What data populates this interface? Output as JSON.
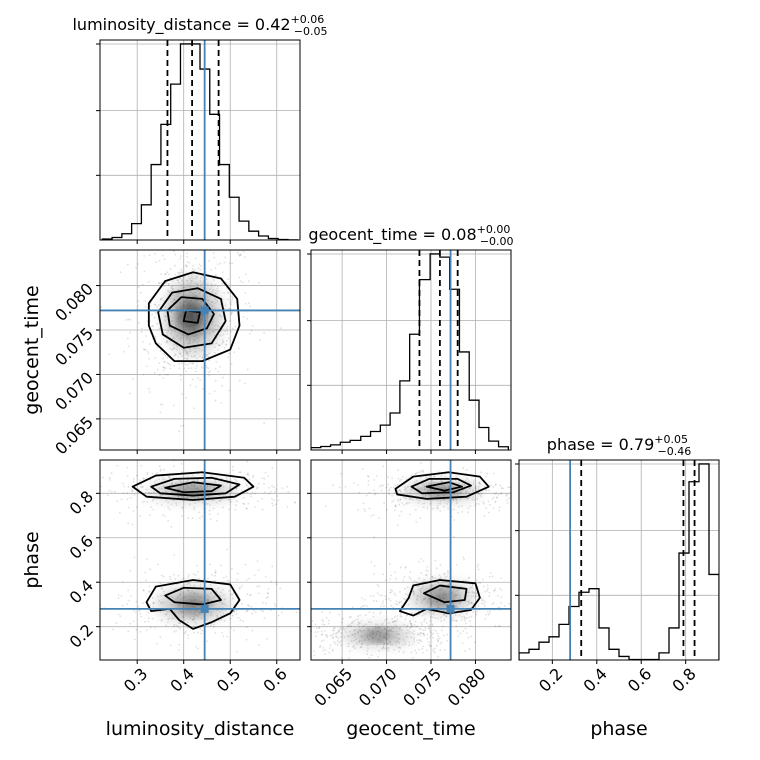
{
  "chart_data": {
    "type": "corner",
    "parameters": [
      "luminosity_distance",
      "geocent_time",
      "phase"
    ],
    "axis_labels": {
      "luminosity_distance": "luminosity_distance",
      "geocent_time": "geocent_time",
      "phase": "phase"
    },
    "ranges": {
      "luminosity_distance": [
        0.22,
        0.65
      ],
      "geocent_time": [
        0.0615,
        0.084
      ],
      "phase": [
        0.05,
        0.95
      ]
    },
    "ticks": {
      "luminosity_distance": {
        "values": [
          0.3,
          0.4,
          0.5,
          0.6
        ],
        "labels": [
          "0.3",
          "0.4",
          "0.5",
          "0.6"
        ]
      },
      "geocent_time": {
        "values": [
          0.065,
          0.07,
          0.075,
          0.08
        ],
        "labels": [
          "0.065",
          "0.070",
          "0.075",
          "0.080"
        ]
      },
      "phase": {
        "values": [
          0.2,
          0.4,
          0.6,
          0.8
        ],
        "labels": [
          "0.2",
          "0.4",
          "0.6",
          "0.8"
        ]
      }
    },
    "truths": {
      "luminosity_distance": 0.445,
      "geocent_time": 0.0772,
      "phase": 0.28
    },
    "summary": {
      "luminosity_distance": {
        "name": "luminosity_distance",
        "median": "0.42",
        "plus": "+0.06",
        "minus": "−0.05",
        "quantiles": [
          0.365,
          0.418,
          0.475
        ]
      },
      "geocent_time": {
        "name": "geocent_time",
        "median": "0.08",
        "plus": "+0.00",
        "minus": "−0.00",
        "quantiles": [
          0.0737,
          0.076,
          0.078
        ]
      },
      "phase": {
        "name": "phase",
        "median": "0.79",
        "plus": "+0.05",
        "minus": "−0.46",
        "quantiles": [
          0.33,
          0.79,
          0.84
        ]
      }
    },
    "histograms": {
      "luminosity_distance": {
        "edges": [
          0.225,
          0.246,
          0.267,
          0.288,
          0.309,
          0.33,
          0.351,
          0.372,
          0.393,
          0.414,
          0.435,
          0.456,
          0.477,
          0.498,
          0.519,
          0.54,
          0.561,
          0.582,
          0.603,
          0.624,
          0.645
        ],
        "counts": [
          0.4,
          1.0,
          2.5,
          6.5,
          14,
          30,
          46,
          62,
          78,
          78,
          68,
          50,
          30,
          17,
          7.5,
          3.5,
          1.6,
          0.6,
          0.2,
          0.05
        ]
      },
      "geocent_time": {
        "edges": [
          0.0615,
          0.0626,
          0.0637,
          0.0648,
          0.0659,
          0.0671,
          0.0682,
          0.0693,
          0.0704,
          0.0715,
          0.0726,
          0.0737,
          0.0749,
          0.076,
          0.0771,
          0.0782,
          0.0793,
          0.0804,
          0.0815,
          0.0826,
          0.0837
        ],
        "counts": [
          1.5,
          2.2,
          3.2,
          4.8,
          6.0,
          8.5,
          11.5,
          15.5,
          23,
          43,
          72,
          106,
          122,
          120,
          100,
          61,
          31,
          14,
          5.5,
          2
        ]
      },
      "phase": {
        "edges": [
          0.05,
          0.095,
          0.14,
          0.185,
          0.23,
          0.275,
          0.32,
          0.365,
          0.41,
          0.455,
          0.5,
          0.545,
          0.59,
          0.635,
          0.68,
          0.725,
          0.77,
          0.815,
          0.86,
          0.905,
          0.95
        ],
        "counts": [
          4,
          6,
          10,
          13,
          20,
          30,
          38,
          40,
          18,
          6,
          2,
          0.3,
          0.3,
          0.3,
          4,
          18,
          60,
          100,
          110,
          48
        ]
      }
    },
    "pairs": [
      {
        "x": "luminosity_distance",
        "y": "geocent_time",
        "regions": [
          {
            "cx": 0.42,
            "cy": 0.0765,
            "rx": 0.08,
            "ry": 0.0055
          },
          {
            "cx": 0.412,
            "cy": 0.0766,
            "rx": 0.045,
            "ry": 0.0038
          }
        ],
        "contours": [
          [
            [
              0.34,
              0.0735
            ],
            [
              0.38,
              0.0715
            ],
            [
              0.44,
              0.0715
            ],
            [
              0.5,
              0.0728
            ],
            [
              0.52,
              0.0755
            ],
            [
              0.515,
              0.0785
            ],
            [
              0.48,
              0.0808
            ],
            [
              0.42,
              0.0815
            ],
            [
              0.36,
              0.0805
            ],
            [
              0.325,
              0.078
            ],
            [
              0.325,
              0.0755
            ]
          ],
          [
            [
              0.355,
              0.0745
            ],
            [
              0.4,
              0.073
            ],
            [
              0.46,
              0.0735
            ],
            [
              0.49,
              0.076
            ],
            [
              0.48,
              0.0785
            ],
            [
              0.43,
              0.0797
            ],
            [
              0.375,
              0.0792
            ],
            [
              0.345,
              0.077
            ]
          ],
          [
            [
              0.37,
              0.0755
            ],
            [
              0.41,
              0.0745
            ],
            [
              0.45,
              0.0752
            ],
            [
              0.465,
              0.0768
            ],
            [
              0.44,
              0.0785
            ],
            [
              0.395,
              0.0787
            ],
            [
              0.365,
              0.0772
            ]
          ],
          [
            [
              0.4,
              0.076
            ],
            [
              0.43,
              0.0758
            ],
            [
              0.435,
              0.077
            ],
            [
              0.405,
              0.0772
            ]
          ]
        ]
      },
      {
        "x": "luminosity_distance",
        "y": "phase",
        "regions": [
          {
            "cx": 0.42,
            "cy": 0.81,
            "rx": 0.12,
            "ry": 0.06
          },
          {
            "cx": 0.42,
            "cy": 0.3,
            "rx": 0.1,
            "ry": 0.1
          }
        ],
        "contours": [
          [
            [
              0.29,
              0.83
            ],
            [
              0.34,
              0.88
            ],
            [
              0.44,
              0.895
            ],
            [
              0.53,
              0.87
            ],
            [
              0.55,
              0.83
            ],
            [
              0.51,
              0.785
            ],
            [
              0.42,
              0.77
            ],
            [
              0.32,
              0.785
            ]
          ],
          [
            [
              0.33,
              0.83
            ],
            [
              0.38,
              0.865
            ],
            [
              0.46,
              0.87
            ],
            [
              0.52,
              0.84
            ],
            [
              0.49,
              0.8
            ],
            [
              0.42,
              0.79
            ],
            [
              0.35,
              0.8
            ]
          ],
          [
            [
              0.36,
              0.825
            ],
            [
              0.42,
              0.85
            ],
            [
              0.48,
              0.835
            ],
            [
              0.46,
              0.81
            ],
            [
              0.4,
              0.805
            ]
          ],
          [
            [
              0.32,
              0.31
            ],
            [
              0.34,
              0.38
            ],
            [
              0.42,
              0.41
            ],
            [
              0.5,
              0.39
            ],
            [
              0.52,
              0.32
            ],
            [
              0.5,
              0.26
            ],
            [
              0.46,
              0.22
            ],
            [
              0.42,
              0.19
            ],
            [
              0.39,
              0.23
            ],
            [
              0.37,
              0.28
            ],
            [
              0.33,
              0.27
            ]
          ],
          [
            [
              0.36,
              0.34
            ],
            [
              0.4,
              0.375
            ],
            [
              0.46,
              0.37
            ],
            [
              0.48,
              0.32
            ],
            [
              0.44,
              0.3
            ],
            [
              0.38,
              0.31
            ]
          ]
        ]
      },
      {
        "x": "geocent_time",
        "y": "phase",
        "regions": [
          {
            "cx": 0.0762,
            "cy": 0.81,
            "rx": 0.0055,
            "ry": 0.06
          },
          {
            "cx": 0.0762,
            "cy": 0.33,
            "rx": 0.0045,
            "ry": 0.09
          },
          {
            "cx": 0.069,
            "cy": 0.16,
            "rx": 0.005,
            "ry": 0.06
          }
        ],
        "contours": [
          [
            [
              0.071,
              0.82
            ],
            [
              0.073,
              0.875
            ],
            [
              0.077,
              0.895
            ],
            [
              0.0805,
              0.875
            ],
            [
              0.0815,
              0.83
            ],
            [
              0.079,
              0.785
            ],
            [
              0.0745,
              0.775
            ],
            [
              0.0712,
              0.795
            ]
          ],
          [
            [
              0.0728,
              0.83
            ],
            [
              0.0748,
              0.865
            ],
            [
              0.078,
              0.865
            ],
            [
              0.0795,
              0.835
            ],
            [
              0.0775,
              0.805
            ],
            [
              0.074,
              0.8
            ]
          ],
          [
            [
              0.0745,
              0.83
            ],
            [
              0.077,
              0.85
            ],
            [
              0.0785,
              0.83
            ],
            [
              0.0765,
              0.812
            ]
          ],
          [
            [
              0.0725,
              0.33
            ],
            [
              0.073,
              0.385
            ],
            [
              0.076,
              0.41
            ],
            [
              0.08,
              0.395
            ],
            [
              0.0805,
              0.33
            ],
            [
              0.0795,
              0.275
            ],
            [
              0.077,
              0.26
            ],
            [
              0.0745,
              0.28
            ],
            [
              0.073,
              0.25
            ],
            [
              0.0715,
              0.27
            ]
          ],
          [
            [
              0.0742,
              0.35
            ],
            [
              0.076,
              0.385
            ],
            [
              0.079,
              0.37
            ],
            [
              0.0788,
              0.32
            ],
            [
              0.0765,
              0.31
            ]
          ]
        ]
      }
    ]
  }
}
